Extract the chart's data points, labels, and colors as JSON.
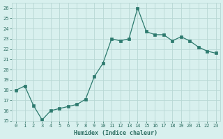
{
  "x": [
    0,
    1,
    2,
    3,
    4,
    5,
    6,
    7,
    8,
    9,
    10,
    11,
    12,
    13,
    14,
    15,
    16,
    17,
    18,
    19,
    20,
    21,
    22,
    23
  ],
  "y": [
    18.0,
    18.4,
    16.5,
    15.1,
    16.0,
    16.2,
    16.4,
    16.6,
    17.1,
    19.3,
    20.6,
    23.0,
    22.8,
    23.0,
    26.0,
    23.7,
    23.4,
    23.4,
    22.8,
    23.2,
    22.8,
    22.2,
    21.8,
    21.6
  ],
  "xlabel": "Humidex (Indice chaleur)",
  "xlim": [
    -0.5,
    23.5
  ],
  "ylim": [
    15,
    26.5
  ],
  "yticks": [
    15,
    16,
    17,
    18,
    19,
    20,
    21,
    22,
    23,
    24,
    25,
    26
  ],
  "xticks": [
    0,
    1,
    2,
    3,
    4,
    5,
    6,
    7,
    8,
    9,
    10,
    11,
    12,
    13,
    14,
    15,
    16,
    17,
    18,
    19,
    20,
    21,
    22,
    23
  ],
  "line_color": "#2d7a6e",
  "marker_color": "#2d7a6e",
  "bg_color": "#d8f0ee",
  "grid_color": "#b8d8d4",
  "font_color": "#2d6e62"
}
